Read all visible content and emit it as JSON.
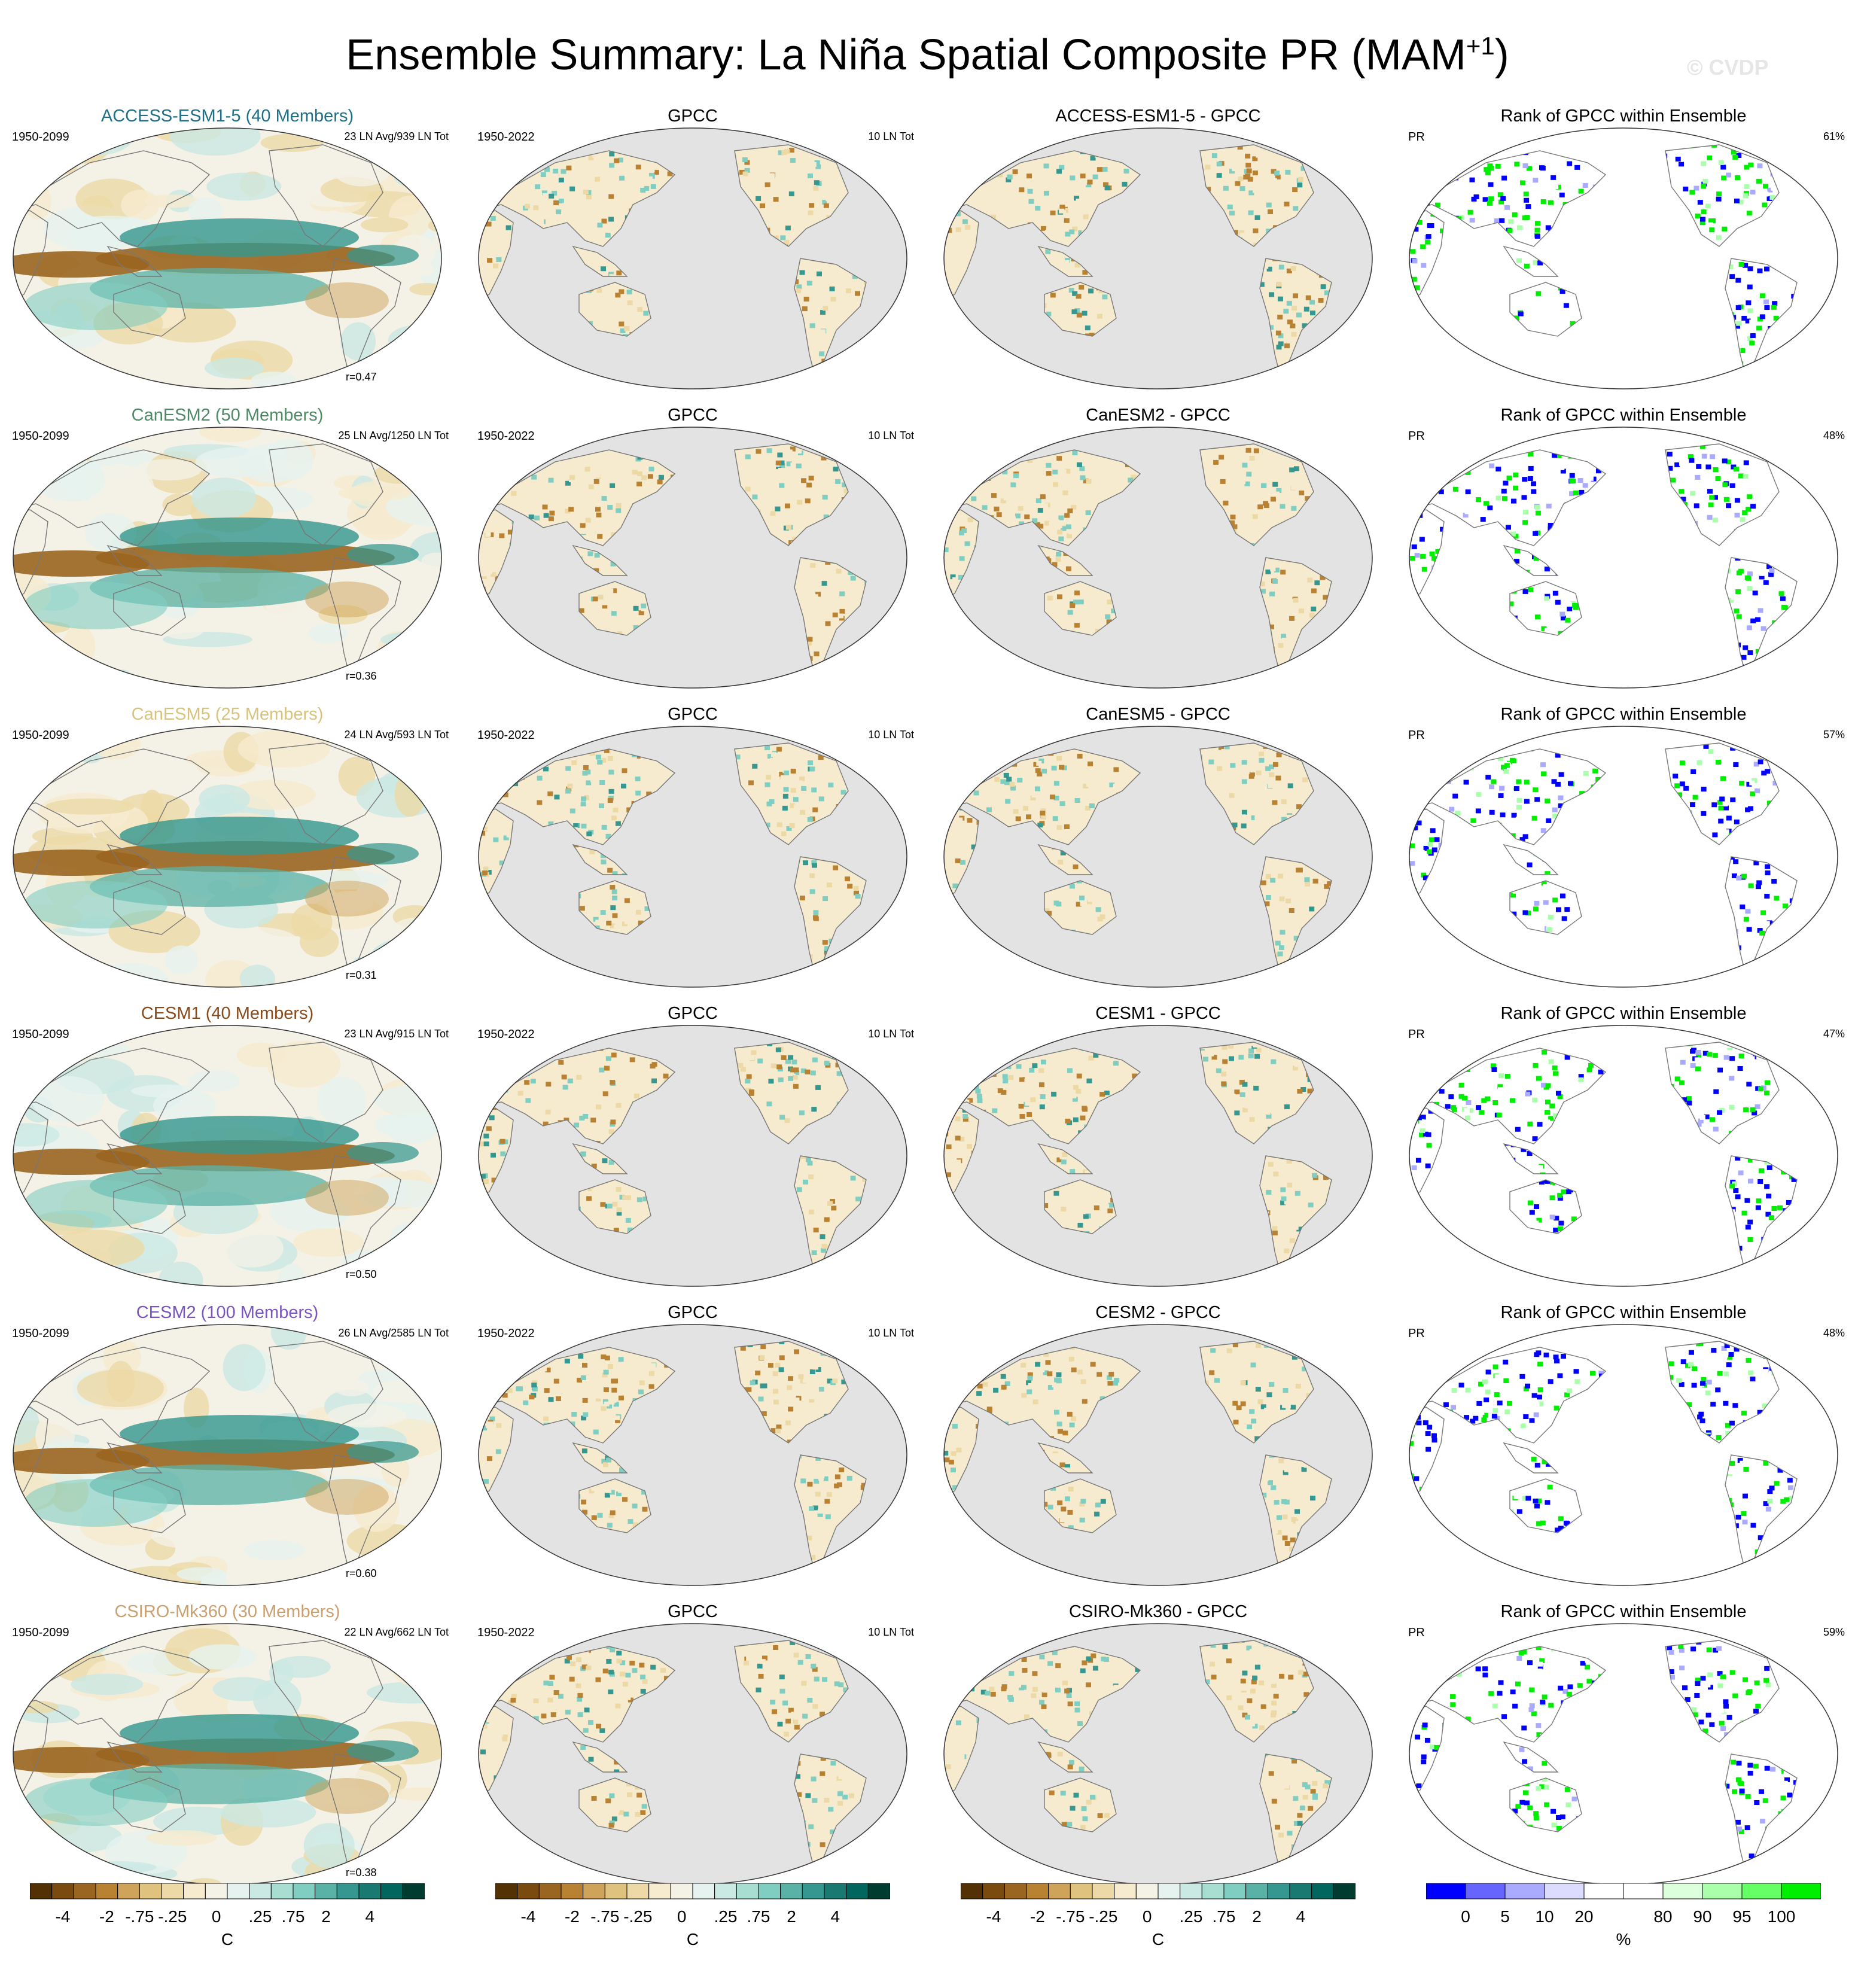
{
  "title_main": "Ensemble Summary: La Niña Spatial Composite PR (MAM",
  "title_sup": "+1",
  "title_end": ")",
  "watermark": "© CVDP",
  "rows": [
    {
      "model": "ACCESS-ESM1-5 (40 Members)",
      "model_color": "#1f6f86",
      "model_years": "1950-2099",
      "model_ln": "23 LN Avg/939 LN Tot",
      "r": "r=0.47",
      "obs_title": "GPCC",
      "obs_years": "1950-2022",
      "obs_ln": "10 LN Tot",
      "diff_title": "ACCESS-ESM1-5 - GPCC",
      "rank_title": "Rank of GPCC within Ensemble",
      "rank_var": "PR",
      "rank_pct": "61%"
    },
    {
      "model": "CanESM2 (50 Members)",
      "model_color": "#4f8a66",
      "model_years": "1950-2099",
      "model_ln": "25 LN Avg/1250 LN Tot",
      "r": "r=0.36",
      "obs_title": "GPCC",
      "obs_years": "1950-2022",
      "obs_ln": "10 LN Tot",
      "diff_title": "CanESM2 - GPCC",
      "rank_title": "Rank of GPCC within Ensemble",
      "rank_var": "PR",
      "rank_pct": "48%"
    },
    {
      "model": "CanESM5 (25 Members)",
      "model_color": "#d8c37e",
      "model_years": "1950-2099",
      "model_ln": "24 LN Avg/593 LN Tot",
      "r": "r=0.31",
      "obs_title": "GPCC",
      "obs_years": "1950-2022",
      "obs_ln": "10 LN Tot",
      "diff_title": "CanESM5 - GPCC",
      "rank_title": "Rank of GPCC within Ensemble",
      "rank_var": "PR",
      "rank_pct": "57%"
    },
    {
      "model": "CESM1 (40 Members)",
      "model_color": "#8a4a1a",
      "model_years": "1950-2099",
      "model_ln": "23 LN Avg/915 LN Tot",
      "r": "r=0.50",
      "obs_title": "GPCC",
      "obs_years": "1950-2022",
      "obs_ln": "10 LN Tot",
      "diff_title": "CESM1 - GPCC",
      "rank_title": "Rank of GPCC within Ensemble",
      "rank_var": "PR",
      "rank_pct": "47%"
    },
    {
      "model": "CESM2 (100 Members)",
      "model_color": "#7a55c0",
      "model_years": "1950-2099",
      "model_ln": "26 LN Avg/2585 LN Tot",
      "r": "r=0.60",
      "obs_title": "GPCC",
      "obs_years": "1950-2022",
      "obs_ln": "10 LN Tot",
      "diff_title": "CESM2 - GPCC",
      "rank_title": "Rank of GPCC within Ensemble",
      "rank_var": "PR",
      "rank_pct": "48%"
    },
    {
      "model": "CSIRO-Mk360 (30 Members)",
      "model_color": "#c9a070",
      "model_years": "1950-2099",
      "model_ln": "22 LN Avg/662 LN Tot",
      "r": "r=0.38",
      "obs_title": "GPCC",
      "obs_years": "1950-2022",
      "obs_ln": "10 LN Tot",
      "diff_title": "CSIRO-Mk360 - GPCC",
      "rank_title": "Rank of GPCC within Ensemble",
      "rank_var": "PR",
      "rank_pct": "59%"
    }
  ],
  "colorbar_brbg": {
    "colors": [
      "#543005",
      "#7a4a0e",
      "#9a6520",
      "#b98233",
      "#cfa35a",
      "#dfc27d",
      "#ecd9a6",
      "#f6ebcf",
      "#f4f1e6",
      "#e6f2ef",
      "#cbe9e3",
      "#a8ddd2",
      "#80cdc1",
      "#5ab2a6",
      "#35978f",
      "#1a7a72",
      "#01665e",
      "#003c30"
    ],
    "labels": [
      "-4",
      "-2",
      "-.75",
      "-.25",
      "0",
      ".25",
      ".75",
      "2",
      "4"
    ],
    "unit": "C"
  },
  "colorbar_rank": {
    "colors": [
      "#0000ff",
      "#6666ff",
      "#aaaaff",
      "#dcdcff",
      "#ffffff",
      "#ffffff",
      "#dcffdc",
      "#aaffaa",
      "#66ff66",
      "#00ee00"
    ],
    "labels": [
      "0",
      "5",
      "10",
      "20",
      "80",
      "90",
      "95",
      "100"
    ],
    "unit": "%"
  },
  "map_colors": {
    "ocean_gray": "#e3e3e3",
    "wet": "#35978f",
    "dry": "#b98233",
    "rank_low": "#0000ff",
    "rank_high": "#00ee00"
  }
}
